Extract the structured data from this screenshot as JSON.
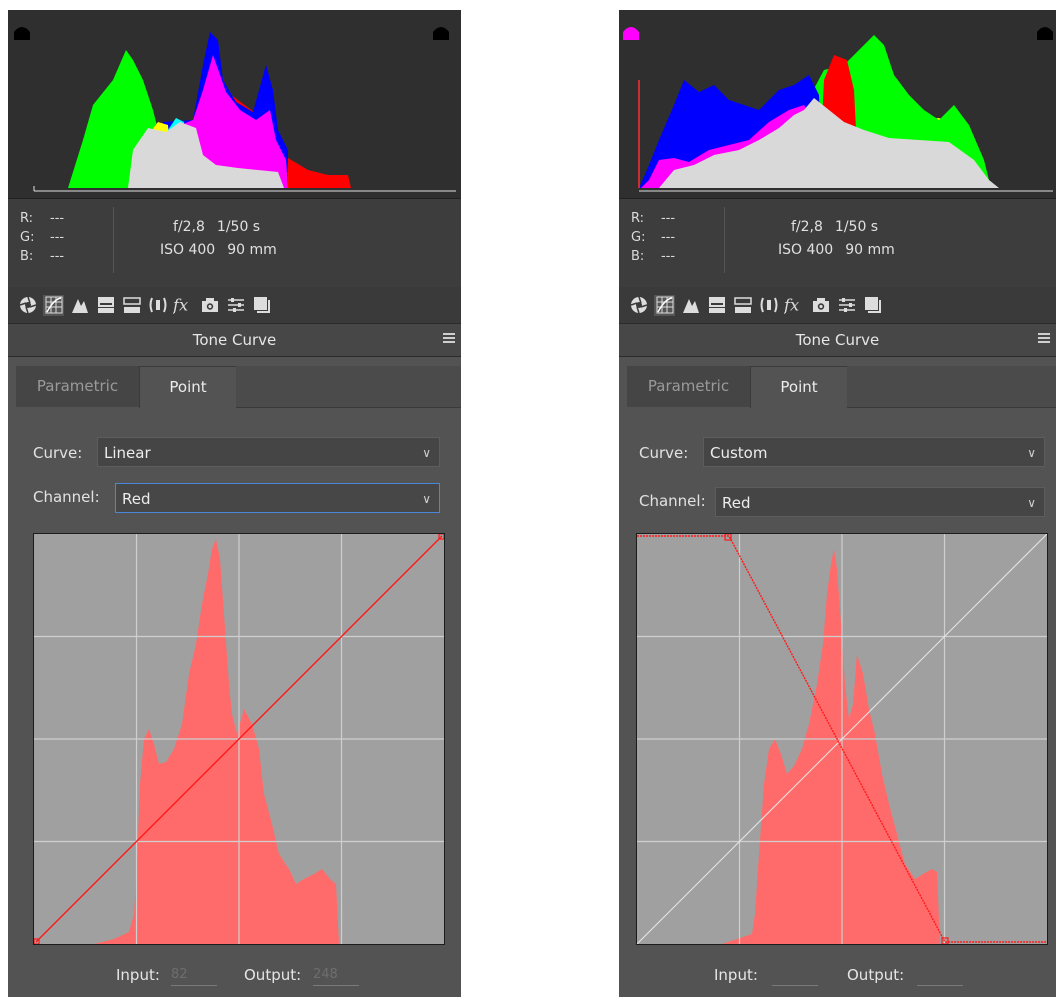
{
  "panels": [
    {
      "info": {
        "rgb": [
          {
            "key": "R:",
            "value": "---"
          },
          {
            "key": "G:",
            "value": "---"
          },
          {
            "key": "B:",
            "value": "---"
          }
        ],
        "aperture": "f/2,8",
        "shutter": "1/50 s",
        "iso": "ISO 400",
        "focal": "90 mm"
      },
      "section_title": "Tone Curve",
      "tabs": {
        "parametric": "Parametric",
        "point": "Point"
      },
      "curve": {
        "label": "Curve:",
        "value": "Linear"
      },
      "channel": {
        "label": "Channel:",
        "value": "Red"
      },
      "input_label": "Input:",
      "input_value": "82",
      "output_label": "Output:",
      "output_value": "248",
      "shadow_clip_color": "#000000",
      "highlight_clip_color": "#000000"
    },
    {
      "info": {
        "rgb": [
          {
            "key": "R:",
            "value": "---"
          },
          {
            "key": "G:",
            "value": "---"
          },
          {
            "key": "B:",
            "value": "---"
          }
        ],
        "aperture": "f/2,8",
        "shutter": "1/50 s",
        "iso": "ISO 400",
        "focal": "90 mm"
      },
      "section_title": "Tone Curve",
      "tabs": {
        "parametric": "Parametric",
        "point": "Point"
      },
      "curve": {
        "label": "Curve:",
        "value": "Custom"
      },
      "channel": {
        "label": "Channel:",
        "value": "Red"
      },
      "input_label": "Input:",
      "input_value": "",
      "output_label": "Output:",
      "output_value": "",
      "shadow_clip_color": "#ff00ff",
      "highlight_clip_color": "#000000"
    }
  ],
  "toolbar_icons": [
    "basic-aperture-icon",
    "tone-curve-icon",
    "detail-icon",
    "hsl-icon",
    "split-toning-icon",
    "lens-corrections-icon",
    "effects-fx-icon",
    "camera-calibration-icon",
    "presets-icon",
    "snapshots-icon"
  ],
  "colors": {
    "panel_bg": "#535353",
    "histogram_bg": "#2f2f2f",
    "curve_bg": "#a0a0a0",
    "accent_red": "#ff2020",
    "focus_blue": "#4b87d8"
  }
}
